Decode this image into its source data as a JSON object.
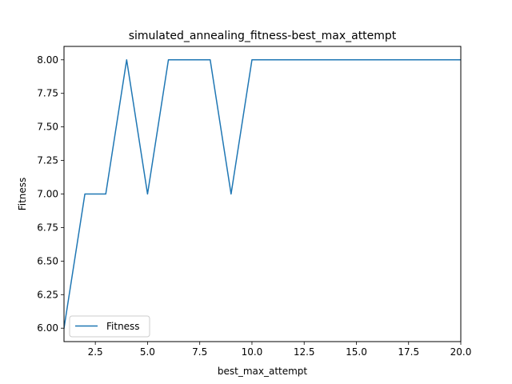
{
  "chart_data": {
    "type": "line",
    "title": "simulated_annealing_fitness-best_max_attempt",
    "xlabel": "best_max_attempt",
    "ylabel": "Fitness",
    "xlim": [
      1,
      20
    ],
    "ylim": [
      5.9,
      8.1
    ],
    "x_ticks": [
      2.5,
      5.0,
      7.5,
      10.0,
      12.5,
      15.0,
      17.5,
      20.0
    ],
    "x_tick_labels": [
      "2.5",
      "5.0",
      "7.5",
      "10.0",
      "12.5",
      "15.0",
      "17.5",
      "20.0"
    ],
    "y_ticks": [
      6.0,
      6.25,
      6.5,
      6.75,
      7.0,
      7.25,
      7.5,
      7.75,
      8.0
    ],
    "y_tick_labels": [
      "6.00",
      "6.25",
      "6.50",
      "6.75",
      "7.00",
      "7.25",
      "7.50",
      "7.75",
      "8.00"
    ],
    "grid": false,
    "legend_position": "lower-left",
    "series": [
      {
        "name": "Fitness",
        "color": "#1f77b4",
        "x": [
          1,
          2,
          3,
          4,
          5,
          6,
          7,
          8,
          9,
          10,
          11,
          12,
          13,
          14,
          15,
          16,
          17,
          18,
          19,
          20
        ],
        "values": [
          6,
          7,
          7,
          8,
          7,
          8,
          8,
          8,
          7,
          8,
          8,
          8,
          8,
          8,
          8,
          8,
          8,
          8,
          8,
          8
        ]
      }
    ]
  }
}
